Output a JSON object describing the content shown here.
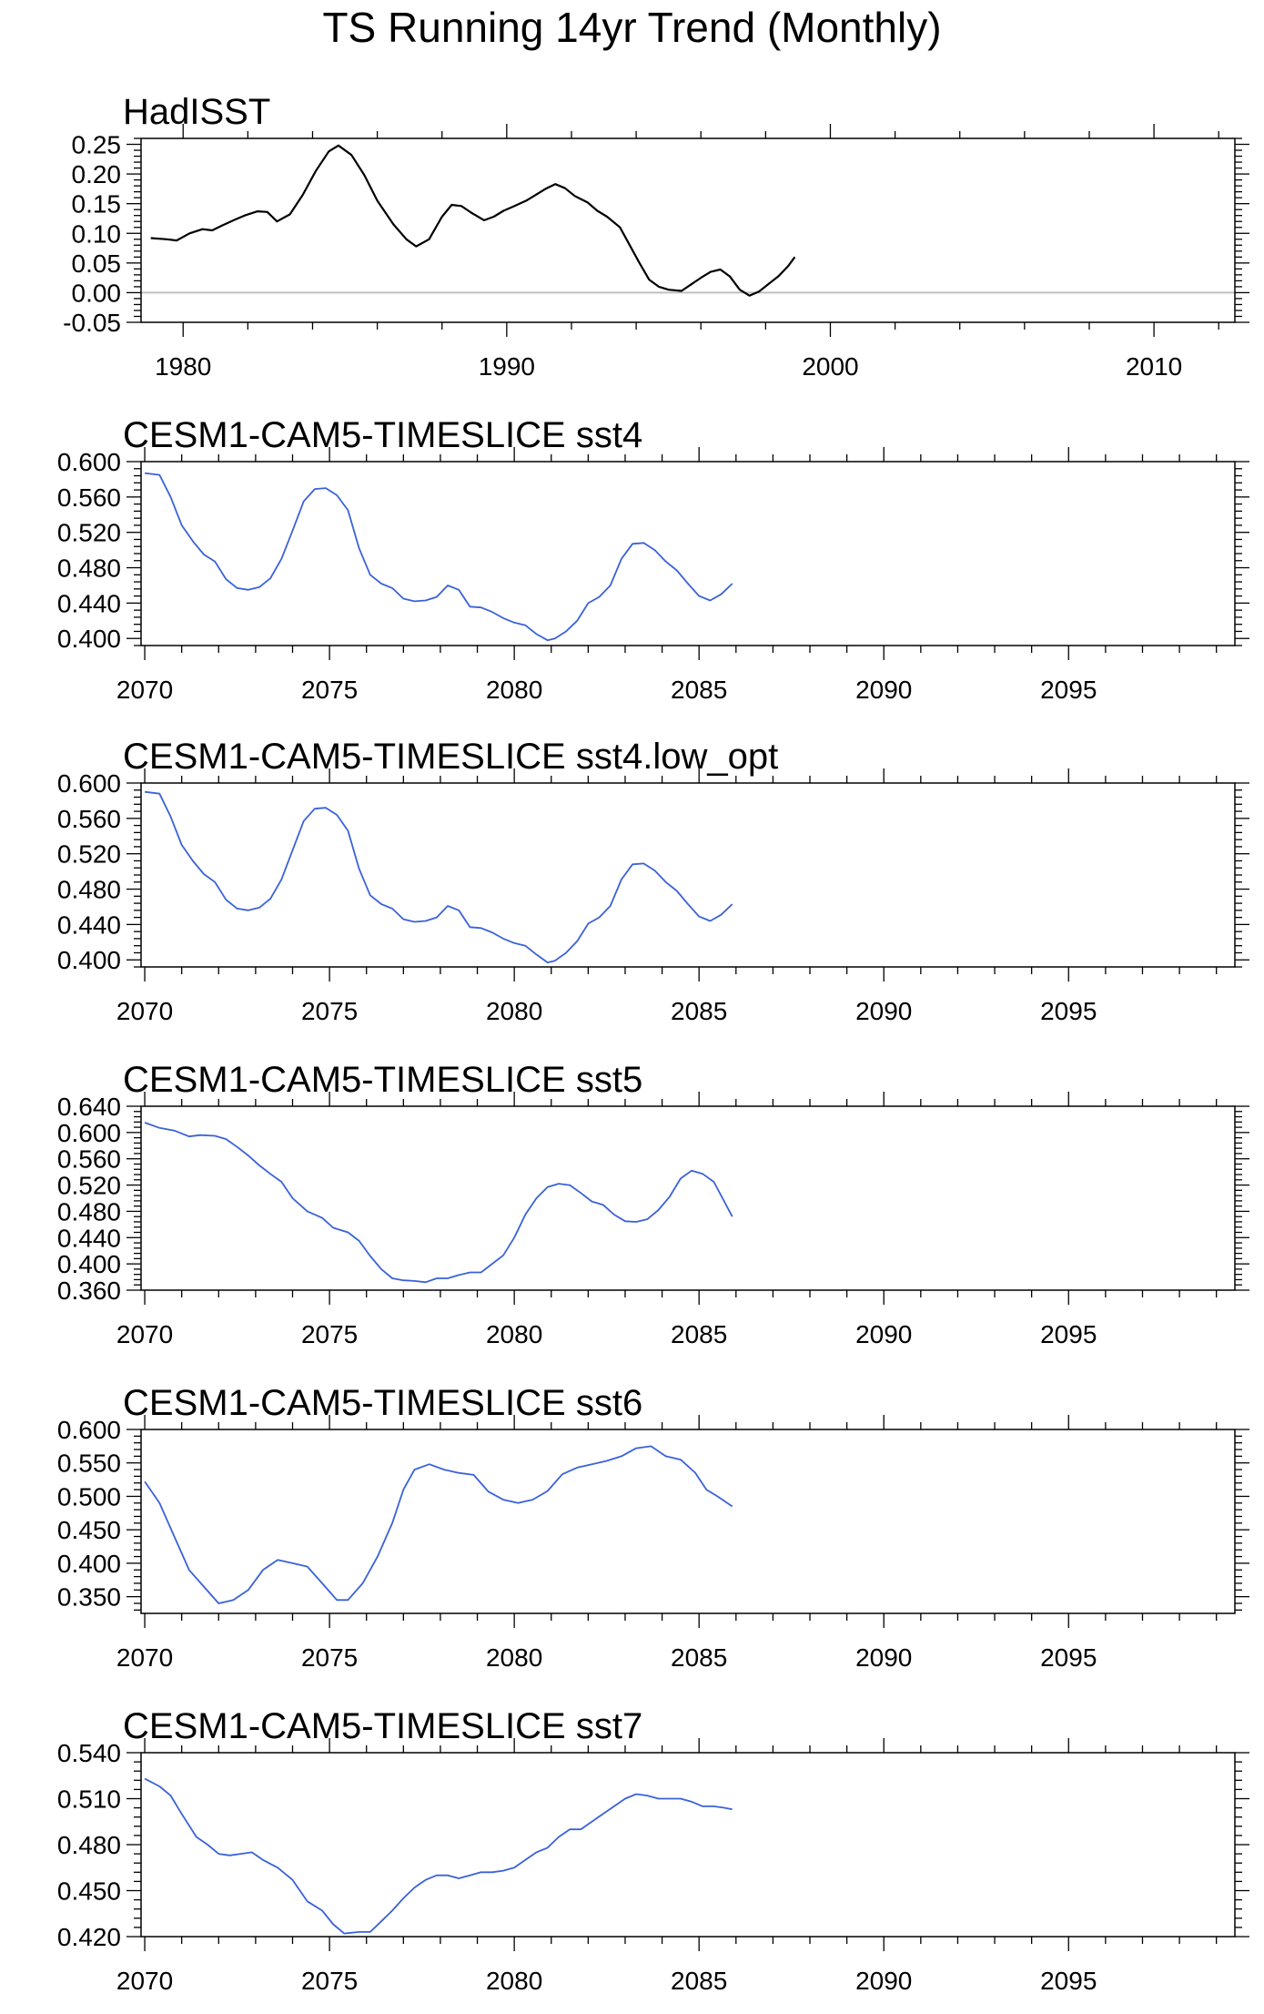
{
  "title": "TS Running 14yr Trend (Monthly)",
  "colors": {
    "observed": "#000000",
    "model": "#3a62d8",
    "zero_line": "#bfbfbf",
    "frame": "#000000"
  },
  "chart_data": [
    {
      "type": "line",
      "title": "HadISST",
      "xlabel": "",
      "ylabel": "",
      "xlim": [
        1978.7,
        2012.5
      ],
      "ylim": [
        -0.05,
        0.26
      ],
      "xticks": [
        1980,
        1990,
        2000,
        2010
      ],
      "xtick_labels": [
        "1980",
        "1990",
        "2000",
        "2010"
      ],
      "yticks": [
        -0.05,
        0.0,
        0.05,
        0.1,
        0.15,
        0.2,
        0.25
      ],
      "ytick_labels": [
        "-0.05",
        "0.00",
        "0.05",
        "0.10",
        "0.15",
        "0.20",
        "0.25"
      ],
      "reference_line": 0.0,
      "line_color": "#000000",
      "x": [
        1979.0,
        1979.5,
        1979.8,
        1980.2,
        1980.6,
        1980.9,
        1981.2,
        1981.6,
        1981.9,
        1982.3,
        1982.6,
        1982.9,
        1983.3,
        1983.7,
        1984.1,
        1984.5,
        1984.8,
        1985.2,
        1985.6,
        1986.0,
        1986.5,
        1986.9,
        1987.2,
        1987.6,
        1988.0,
        1988.3,
        1988.6,
        1988.9,
        1989.3,
        1989.6,
        1989.9,
        1990.2,
        1990.6,
        1990.9,
        1991.2,
        1991.5,
        1991.8,
        1992.1,
        1992.5,
        1992.8,
        1993.1,
        1993.5,
        1993.8,
        1994.1,
        1994.4,
        1994.7,
        1995.0,
        1995.4,
        1995.7,
        1996.0,
        1996.3,
        1996.6,
        1996.9,
        1997.2,
        1997.5,
        1997.8,
        1998.1,
        1998.4,
        1998.7,
        1998.9
      ],
      "y": [
        0.092,
        0.09,
        0.088,
        0.1,
        0.107,
        0.105,
        0.113,
        0.123,
        0.13,
        0.137,
        0.136,
        0.12,
        0.132,
        0.165,
        0.205,
        0.238,
        0.248,
        0.232,
        0.198,
        0.155,
        0.115,
        0.09,
        0.078,
        0.09,
        0.128,
        0.148,
        0.146,
        0.135,
        0.122,
        0.128,
        0.138,
        0.145,
        0.155,
        0.165,
        0.175,
        0.183,
        0.176,
        0.163,
        0.152,
        0.138,
        0.128,
        0.11,
        0.08,
        0.05,
        0.022,
        0.01,
        0.005,
        0.003,
        0.014,
        0.025,
        0.035,
        0.039,
        0.027,
        0.005,
        -0.005,
        0.002,
        0.015,
        0.028,
        0.045,
        0.06
      ]
    },
    {
      "type": "line",
      "title": "CESM1-CAM5-TIMESLICE sst4",
      "xlabel": "",
      "ylabel": "",
      "xlim": [
        2069.9,
        2099.5
      ],
      "ylim": [
        0.392,
        0.6
      ],
      "xticks": [
        2070,
        2075,
        2080,
        2085,
        2090,
        2095
      ],
      "xtick_labels": [
        "2070",
        "2075",
        "2080",
        "2085",
        "2090",
        "2095"
      ],
      "yticks": [
        0.4,
        0.44,
        0.48,
        0.52,
        0.56,
        0.6
      ],
      "ytick_labels": [
        "0.400",
        "0.440",
        "0.480",
        "0.520",
        "0.560",
        "0.600"
      ],
      "line_color": "#3a62d8",
      "x": [
        2070.0,
        2070.4,
        2070.7,
        2071.0,
        2071.3,
        2071.6,
        2071.9,
        2072.2,
        2072.5,
        2072.8,
        2073.1,
        2073.4,
        2073.7,
        2074.0,
        2074.3,
        2074.6,
        2074.9,
        2075.2,
        2075.5,
        2075.8,
        2076.1,
        2076.4,
        2076.7,
        2077.0,
        2077.3,
        2077.6,
        2077.9,
        2078.2,
        2078.5,
        2078.8,
        2079.1,
        2079.4,
        2079.7,
        2080.0,
        2080.3,
        2080.6,
        2080.9,
        2081.1,
        2081.4,
        2081.7,
        2082.0,
        2082.3,
        2082.6,
        2082.9,
        2083.2,
        2083.5,
        2083.8,
        2084.1,
        2084.4,
        2084.7,
        2085.0,
        2085.3,
        2085.6,
        2085.9
      ],
      "y": [
        0.587,
        0.585,
        0.56,
        0.528,
        0.51,
        0.495,
        0.487,
        0.467,
        0.457,
        0.455,
        0.458,
        0.468,
        0.49,
        0.522,
        0.555,
        0.569,
        0.57,
        0.562,
        0.545,
        0.502,
        0.472,
        0.462,
        0.457,
        0.445,
        0.442,
        0.443,
        0.447,
        0.46,
        0.455,
        0.436,
        0.435,
        0.43,
        0.423,
        0.418,
        0.415,
        0.405,
        0.398,
        0.4,
        0.408,
        0.42,
        0.44,
        0.447,
        0.46,
        0.49,
        0.507,
        0.508,
        0.5,
        0.487,
        0.477,
        0.462,
        0.448,
        0.443,
        0.45,
        0.462
      ]
    },
    {
      "type": "line",
      "title": "CESM1-CAM5-TIMESLICE sst4.low_opt",
      "xlabel": "",
      "ylabel": "",
      "xlim": [
        2069.9,
        2099.5
      ],
      "ylim": [
        0.392,
        0.6
      ],
      "xticks": [
        2070,
        2075,
        2080,
        2085,
        2090,
        2095
      ],
      "xtick_labels": [
        "2070",
        "2075",
        "2080",
        "2085",
        "2090",
        "2095"
      ],
      "yticks": [
        0.4,
        0.44,
        0.48,
        0.52,
        0.56,
        0.6
      ],
      "ytick_labels": [
        "0.400",
        "0.440",
        "0.480",
        "0.520",
        "0.560",
        "0.600"
      ],
      "line_color": "#3a62d8",
      "x": [
        2070.0,
        2070.4,
        2070.7,
        2071.0,
        2071.3,
        2071.6,
        2071.9,
        2072.2,
        2072.5,
        2072.8,
        2073.1,
        2073.4,
        2073.7,
        2074.0,
        2074.3,
        2074.6,
        2074.9,
        2075.2,
        2075.5,
        2075.8,
        2076.1,
        2076.4,
        2076.7,
        2077.0,
        2077.3,
        2077.6,
        2077.9,
        2078.2,
        2078.5,
        2078.8,
        2079.1,
        2079.4,
        2079.7,
        2080.0,
        2080.3,
        2080.6,
        2080.9,
        2081.1,
        2081.4,
        2081.7,
        2082.0,
        2082.3,
        2082.6,
        2082.9,
        2083.2,
        2083.5,
        2083.8,
        2084.1,
        2084.4,
        2084.7,
        2085.0,
        2085.3,
        2085.6,
        2085.9
      ],
      "y": [
        0.59,
        0.588,
        0.562,
        0.53,
        0.512,
        0.497,
        0.488,
        0.468,
        0.458,
        0.456,
        0.459,
        0.469,
        0.491,
        0.524,
        0.557,
        0.571,
        0.572,
        0.564,
        0.546,
        0.503,
        0.473,
        0.463,
        0.458,
        0.446,
        0.443,
        0.444,
        0.448,
        0.461,
        0.456,
        0.437,
        0.436,
        0.431,
        0.424,
        0.419,
        0.416,
        0.406,
        0.397,
        0.399,
        0.408,
        0.421,
        0.441,
        0.448,
        0.461,
        0.491,
        0.508,
        0.509,
        0.501,
        0.488,
        0.478,
        0.463,
        0.449,
        0.444,
        0.451,
        0.463
      ]
    },
    {
      "type": "line",
      "title": "CESM1-CAM5-TIMESLICE sst5",
      "xlabel": "",
      "ylabel": "",
      "xlim": [
        2069.9,
        2099.5
      ],
      "ylim": [
        0.36,
        0.64
      ],
      "xticks": [
        2070,
        2075,
        2080,
        2085,
        2090,
        2095
      ],
      "xtick_labels": [
        "2070",
        "2075",
        "2080",
        "2085",
        "2090",
        "2095"
      ],
      "yticks": [
        0.36,
        0.4,
        0.44,
        0.48,
        0.52,
        0.56,
        0.6,
        0.64
      ],
      "ytick_labels": [
        "0.360",
        "0.400",
        "0.440",
        "0.480",
        "0.520",
        "0.560",
        "0.600",
        "0.640"
      ],
      "line_color": "#3a62d8",
      "x": [
        2070.0,
        2070.4,
        2070.8,
        2071.2,
        2071.5,
        2071.9,
        2072.2,
        2072.5,
        2072.8,
        2073.1,
        2073.4,
        2073.7,
        2074.0,
        2074.4,
        2074.8,
        2075.1,
        2075.5,
        2075.8,
        2076.1,
        2076.4,
        2076.7,
        2077.0,
        2077.3,
        2077.6,
        2077.9,
        2078.2,
        2078.5,
        2078.8,
        2079.1,
        2079.4,
        2079.7,
        2080.0,
        2080.3,
        2080.6,
        2080.9,
        2081.2,
        2081.5,
        2081.8,
        2082.1,
        2082.4,
        2082.7,
        2083.0,
        2083.3,
        2083.6,
        2083.9,
        2084.2,
        2084.5,
        2084.8,
        2085.1,
        2085.4,
        2085.9
      ],
      "y": [
        0.615,
        0.607,
        0.603,
        0.594,
        0.596,
        0.595,
        0.59,
        0.578,
        0.565,
        0.55,
        0.537,
        0.525,
        0.5,
        0.48,
        0.47,
        0.455,
        0.448,
        0.435,
        0.412,
        0.392,
        0.378,
        0.375,
        0.374,
        0.372,
        0.378,
        0.378,
        0.383,
        0.387,
        0.387,
        0.4,
        0.413,
        0.44,
        0.475,
        0.5,
        0.517,
        0.522,
        0.52,
        0.508,
        0.495,
        0.49,
        0.475,
        0.465,
        0.464,
        0.468,
        0.482,
        0.502,
        0.53,
        0.542,
        0.537,
        0.525,
        0.472
      ]
    },
    {
      "type": "line",
      "title": "CESM1-CAM5-TIMESLICE sst6",
      "xlabel": "",
      "ylabel": "",
      "xlim": [
        2069.9,
        2099.5
      ],
      "ylim": [
        0.325,
        0.6
      ],
      "xticks": [
        2070,
        2075,
        2080,
        2085,
        2090,
        2095
      ],
      "xtick_labels": [
        "2070",
        "2075",
        "2080",
        "2085",
        "2090",
        "2095"
      ],
      "yticks": [
        0.35,
        0.4,
        0.45,
        0.5,
        0.55,
        0.6
      ],
      "ytick_labels": [
        "0.350",
        "0.400",
        "0.450",
        "0.500",
        "0.550",
        "0.600"
      ],
      "line_color": "#3a62d8",
      "x": [
        2070.0,
        2070.4,
        2070.8,
        2071.2,
        2071.6,
        2072.0,
        2072.4,
        2072.8,
        2073.2,
        2073.6,
        2074.0,
        2074.4,
        2074.8,
        2075.2,
        2075.5,
        2075.9,
        2076.3,
        2076.7,
        2077.0,
        2077.3,
        2077.7,
        2078.1,
        2078.5,
        2078.9,
        2079.3,
        2079.7,
        2080.1,
        2080.5,
        2080.9,
        2081.3,
        2081.7,
        2082.1,
        2082.5,
        2082.9,
        2083.3,
        2083.7,
        2084.1,
        2084.5,
        2084.9,
        2085.2,
        2085.5,
        2085.9
      ],
      "y": [
        0.522,
        0.49,
        0.44,
        0.39,
        0.365,
        0.34,
        0.345,
        0.36,
        0.39,
        0.405,
        0.4,
        0.395,
        0.37,
        0.345,
        0.345,
        0.37,
        0.41,
        0.46,
        0.51,
        0.54,
        0.548,
        0.54,
        0.535,
        0.532,
        0.507,
        0.495,
        0.49,
        0.495,
        0.508,
        0.533,
        0.543,
        0.548,
        0.553,
        0.56,
        0.572,
        0.575,
        0.56,
        0.555,
        0.535,
        0.51,
        0.5,
        0.485
      ]
    },
    {
      "type": "line",
      "title": "CESM1-CAM5-TIMESLICE sst7",
      "xlabel": "",
      "ylabel": "",
      "xlim": [
        2069.9,
        2099.5
      ],
      "ylim": [
        0.42,
        0.54
      ],
      "xticks": [
        2070,
        2075,
        2080,
        2085,
        2090,
        2095
      ],
      "xtick_labels": [
        "2070",
        "2075",
        "2080",
        "2085",
        "2090",
        "2095"
      ],
      "yticks": [
        0.42,
        0.45,
        0.48,
        0.51,
        0.54
      ],
      "ytick_labels": [
        "0.420",
        "0.450",
        "0.480",
        "0.510",
        "0.540"
      ],
      "line_color": "#3a62d8",
      "x": [
        2070.0,
        2070.4,
        2070.7,
        2071.0,
        2071.4,
        2071.7,
        2072.0,
        2072.3,
        2072.6,
        2072.9,
        2073.2,
        2073.6,
        2074.0,
        2074.4,
        2074.8,
        2075.1,
        2075.4,
        2075.8,
        2076.1,
        2076.4,
        2076.7,
        2077.0,
        2077.3,
        2077.6,
        2077.9,
        2078.2,
        2078.5,
        2078.8,
        2079.1,
        2079.4,
        2079.7,
        2080.0,
        2080.3,
        2080.6,
        2080.9,
        2081.2,
        2081.5,
        2081.8,
        2082.1,
        2082.4,
        2082.7,
        2083.0,
        2083.3,
        2083.6,
        2083.9,
        2084.2,
        2084.5,
        2084.8,
        2085.1,
        2085.4,
        2085.7,
        2085.9
      ],
      "y": [
        0.523,
        0.518,
        0.512,
        0.5,
        0.485,
        0.48,
        0.474,
        0.473,
        0.474,
        0.475,
        0.47,
        0.465,
        0.457,
        0.443,
        0.437,
        0.428,
        0.422,
        0.423,
        0.423,
        0.43,
        0.437,
        0.445,
        0.452,
        0.457,
        0.46,
        0.46,
        0.458,
        0.46,
        0.462,
        0.462,
        0.463,
        0.465,
        0.47,
        0.475,
        0.478,
        0.485,
        0.49,
        0.49,
        0.495,
        0.5,
        0.505,
        0.51,
        0.513,
        0.512,
        0.51,
        0.51,
        0.51,
        0.508,
        0.505,
        0.505,
        0.504,
        0.503
      ]
    }
  ]
}
